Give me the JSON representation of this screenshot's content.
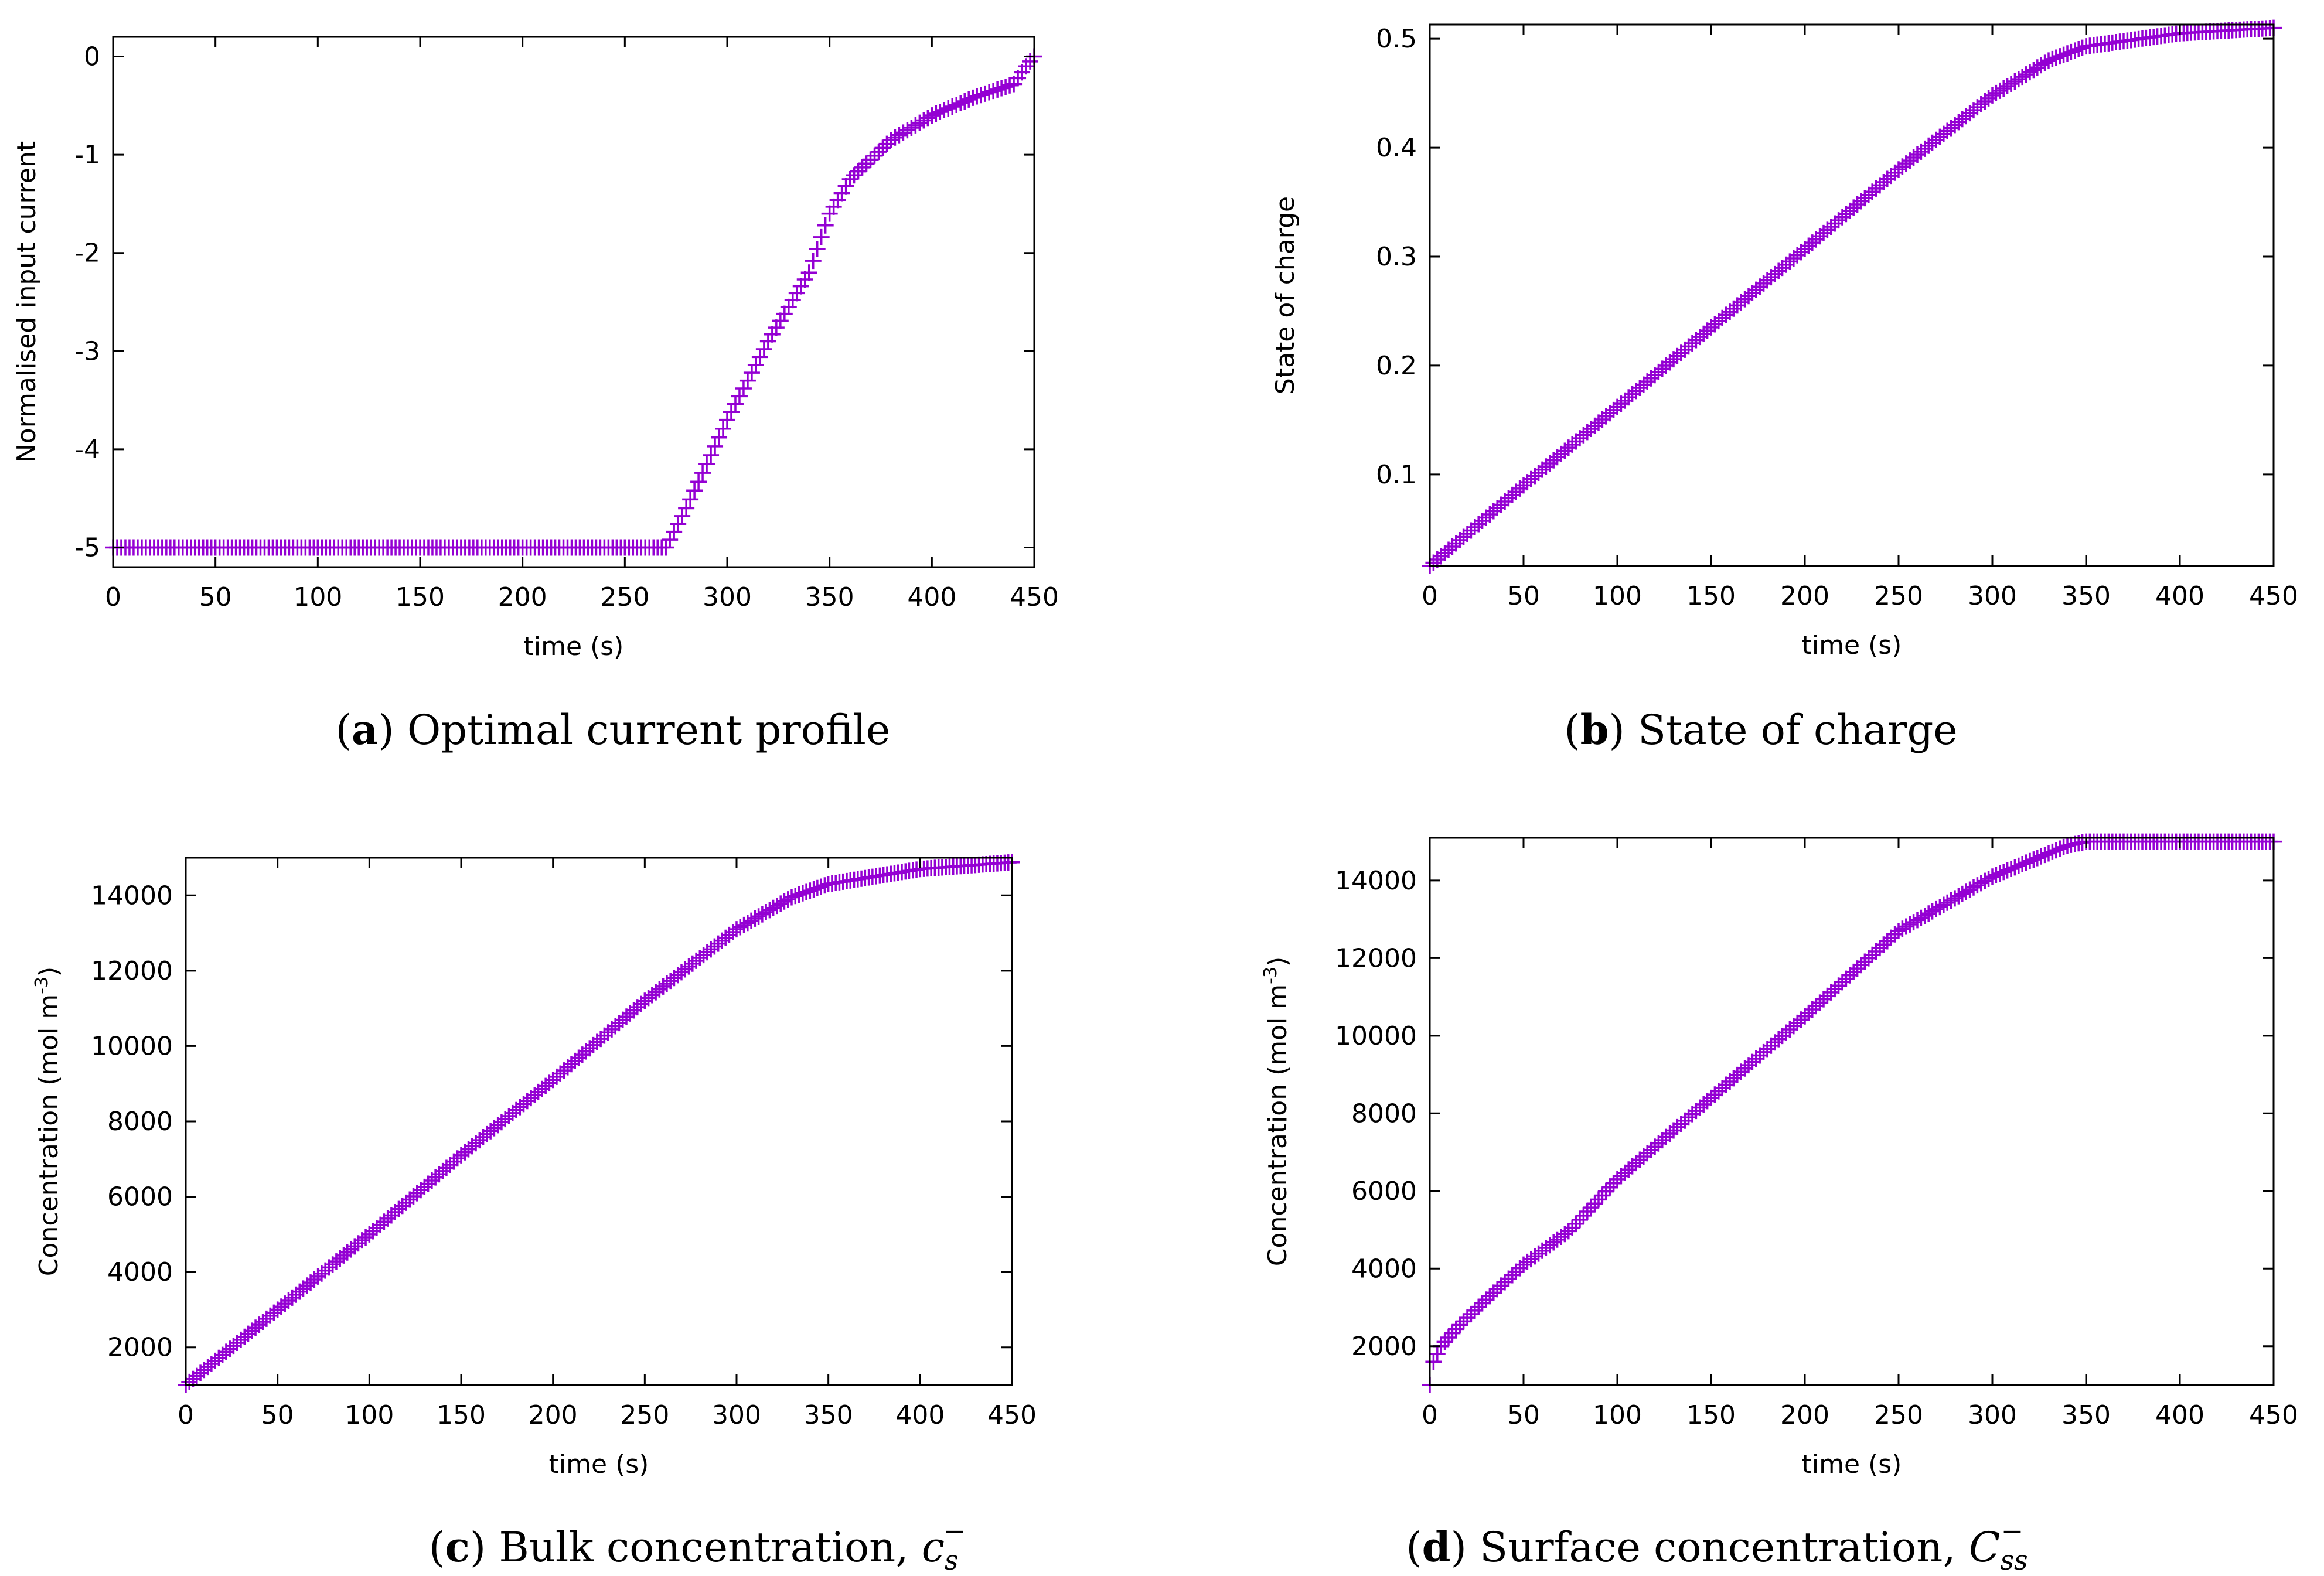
{
  "figure": {
    "colors": {
      "series": "#9400D3",
      "axis": "#000000",
      "background": "#ffffff"
    },
    "marker": "plus"
  },
  "chart_data": [
    {
      "id": "a",
      "type": "scatter",
      "caption": {
        "letter": "a",
        "prefix": "(",
        "suffix": ")",
        "text": " Optimal current profile"
      },
      "xlabel": "time (s)",
      "ylabel": "Normalised input current",
      "xlim": [
        0,
        450
      ],
      "ylim": [
        -5.2,
        0.2
      ],
      "xticks": [
        0,
        50,
        100,
        150,
        200,
        250,
        300,
        350,
        400,
        450
      ],
      "yticks": [
        -5,
        -4,
        -3,
        -2,
        -1,
        0
      ],
      "grid": false,
      "series": [
        {
          "values_description_not_rendered": null,
          "x_start": 0,
          "x_end": 450,
          "x_step": 2,
          "curve": [
            [
              0,
              -5
            ],
            [
              270,
              -5
            ],
            [
              280,
              -4.6
            ],
            [
              300,
              -3.7
            ],
            [
              320,
              -2.9
            ],
            [
              340,
              -2.2
            ],
            [
              350,
              -1.6
            ],
            [
              360,
              -1.25
            ],
            [
              380,
              -0.85
            ],
            [
              400,
              -0.6
            ],
            [
              420,
              -0.42
            ],
            [
              440,
              -0.28
            ],
            [
              446,
              -0.1
            ],
            [
              450,
              0
            ]
          ]
        }
      ]
    },
    {
      "id": "b",
      "type": "scatter",
      "caption": {
        "letter": "b",
        "prefix": "(",
        "suffix": ")",
        "text": " State of charge"
      },
      "xlabel": "time (s)",
      "ylabel": "State of charge",
      "xlim": [
        0,
        450
      ],
      "ylim": [
        0.016,
        0.513
      ],
      "xticks": [
        0,
        50,
        100,
        150,
        200,
        250,
        300,
        350,
        400,
        450
      ],
      "yticks": [
        0.1,
        0.2,
        0.3,
        0.4,
        0.5
      ],
      "grid": false,
      "series": [
        {
          "x_start": 0,
          "x_end": 450,
          "x_step": 2,
          "curve": [
            [
              0,
              0.016
            ],
            [
              50,
              0.09
            ],
            [
              100,
              0.162
            ],
            [
              150,
              0.235
            ],
            [
              200,
              0.307
            ],
            [
              250,
              0.38
            ],
            [
              300,
              0.448
            ],
            [
              330,
              0.48
            ],
            [
              350,
              0.493
            ],
            [
              400,
              0.505
            ],
            [
              450,
              0.51
            ]
          ]
        }
      ]
    },
    {
      "id": "c",
      "type": "scatter",
      "caption": {
        "letter": "c",
        "prefix": "(",
        "suffix": ")",
        "text": " Bulk concentration, ",
        "symbol": "c",
        "sub": "s",
        "sup": "−"
      },
      "xlabel": "time (s)",
      "ylabel": "Concentration (mol m",
      "ylabel_sup": "-3",
      "ylabel_end": ")",
      "xlim": [
        0,
        450
      ],
      "ylim": [
        1000,
        15000
      ],
      "xticks": [
        0,
        50,
        100,
        150,
        200,
        250,
        300,
        350,
        400,
        450
      ],
      "yticks": [
        2000,
        4000,
        6000,
        8000,
        10000,
        12000,
        14000
      ],
      "grid": false,
      "series": [
        {
          "x_start": 0,
          "x_end": 450,
          "x_step": 2,
          "curve": [
            [
              0,
              1000
            ],
            [
              50,
              3000
            ],
            [
              100,
              5000
            ],
            [
              150,
              7100
            ],
            [
              200,
              9100
            ],
            [
              250,
              11200
            ],
            [
              300,
              13100
            ],
            [
              330,
              13950
            ],
            [
              350,
              14300
            ],
            [
              400,
              14700
            ],
            [
              450,
              14880
            ]
          ]
        }
      ]
    },
    {
      "id": "d",
      "type": "scatter",
      "caption": {
        "letter": "d",
        "prefix": "(",
        "suffix": ")",
        "text": " Surface concentration, ",
        "symbol": "C",
        "sub": "ss",
        "sup": "−"
      },
      "xlabel": "time (s)",
      "ylabel": "Concentration (mol m",
      "ylabel_sup": "-3",
      "ylabel_end": ")",
      "xlim": [
        0,
        450
      ],
      "ylim": [
        1000,
        15100
      ],
      "xticks": [
        0,
        50,
        100,
        150,
        200,
        250,
        300,
        350,
        400,
        450
      ],
      "yticks": [
        2000,
        4000,
        6000,
        8000,
        10000,
        12000,
        14000
      ],
      "grid": false,
      "series": [
        {
          "x_start": 0,
          "x_end": 450,
          "x_step": 2,
          "curve": [
            [
              0,
              1000
            ],
            [
              2,
              1600
            ],
            [
              6,
              2000
            ],
            [
              15,
              2500
            ],
            [
              30,
              3200
            ],
            [
              50,
              4100
            ],
            [
              75,
              5000
            ],
            [
              100,
              6300
            ],
            [
              150,
              8400
            ],
            [
              200,
              10500
            ],
            [
              250,
              12700
            ],
            [
              300,
              14100
            ],
            [
              340,
              14900
            ],
            [
              350,
              15000
            ],
            [
              450,
              15000
            ]
          ]
        }
      ]
    }
  ]
}
